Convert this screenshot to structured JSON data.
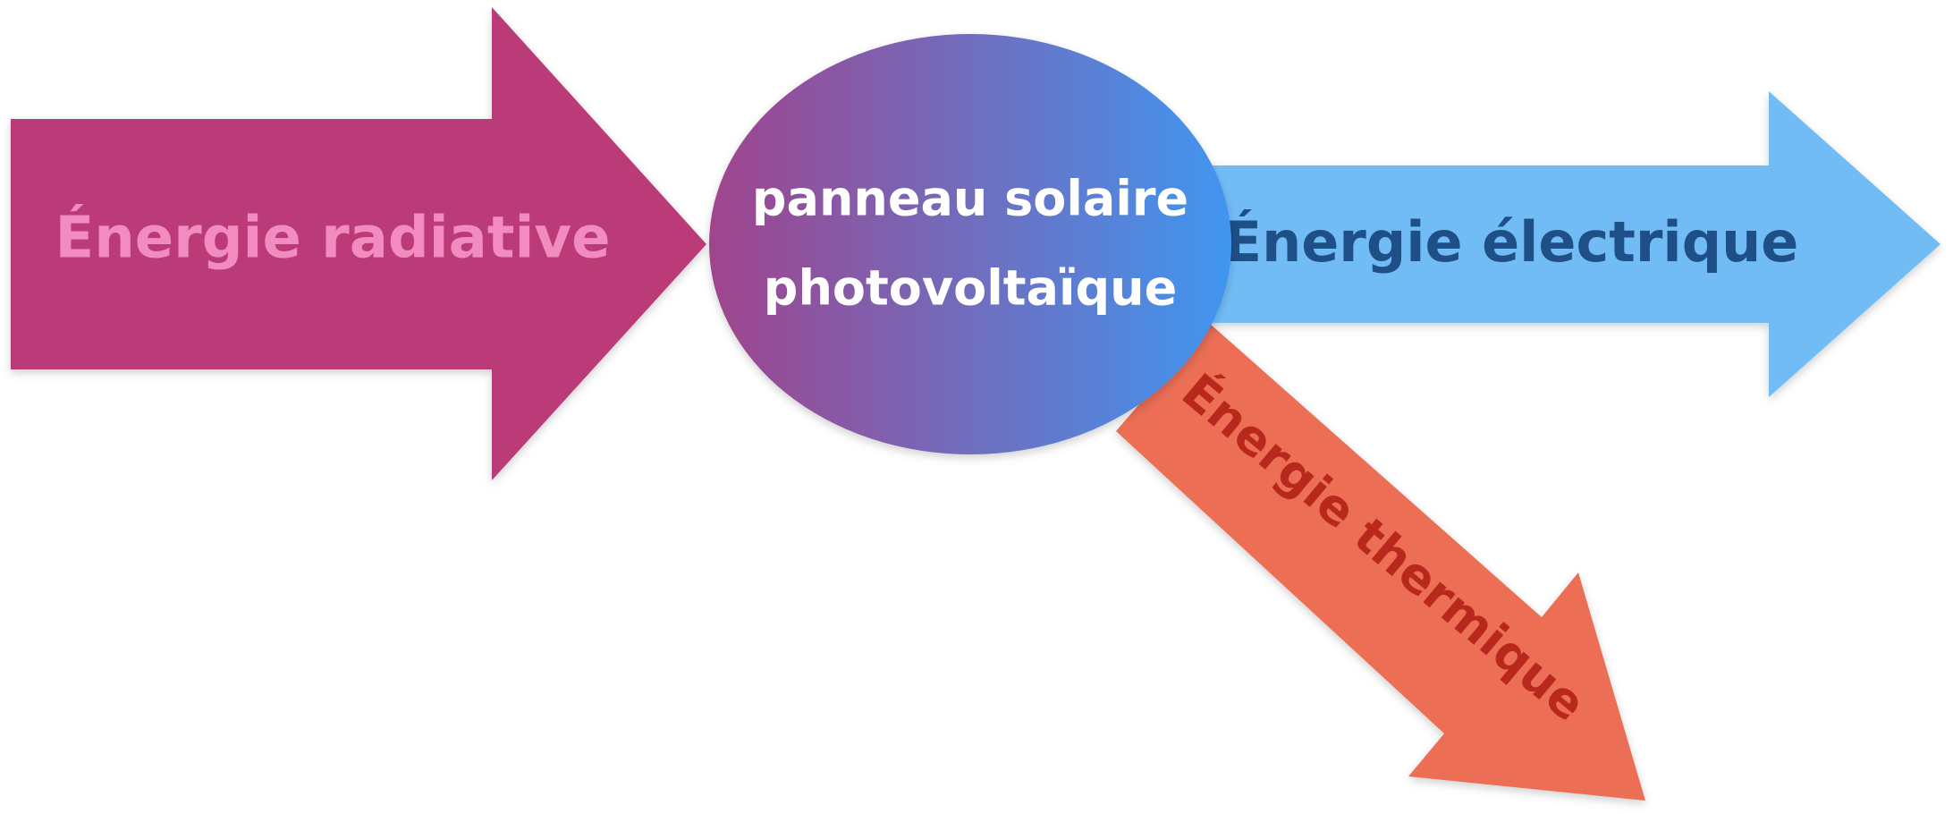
{
  "diagram": {
    "source": {
      "label": "Énergie radiative",
      "fill": "#BB3A78",
      "text_color": "#F28CC0"
    },
    "converter": {
      "line1": "panneau solaire",
      "line2": "photovoltaïque",
      "gradient_start": "#A0448C",
      "gradient_end": "#4096F0",
      "text_color": "#FFFFFF"
    },
    "output_electric": {
      "label": "Énergie électrique",
      "fill": "#72BCF6",
      "text_color": "#1E4F86"
    },
    "output_thermal": {
      "label": "Énergie thermique",
      "fill": "#EB6E55",
      "text_color": "#B8281C"
    }
  }
}
